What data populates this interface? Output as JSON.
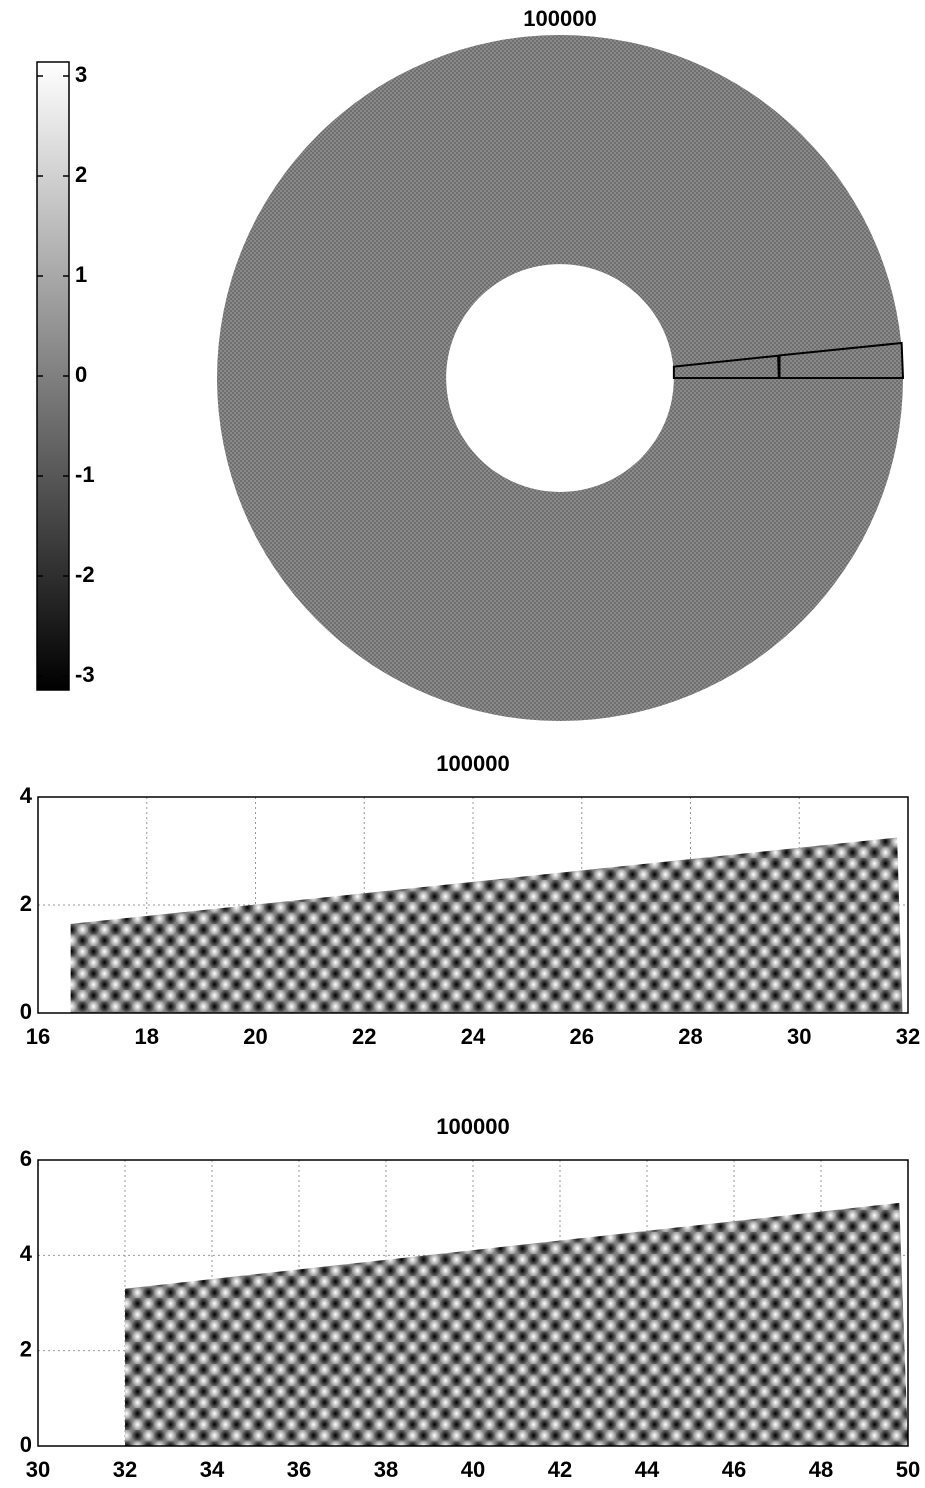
{
  "chart_data": [
    {
      "type": "annulus",
      "title": "100000",
      "radii": [
        16.6,
        50
      ],
      "colorbar": {
        "ylim": [
          -3.14,
          3.14
        ],
        "yticks": [
          -3,
          -2,
          -1,
          0,
          1,
          2,
          3
        ]
      }
    },
    {
      "type": "wedge",
      "title": "100000",
      "xlim": [
        16,
        32
      ],
      "ylim": [
        0,
        4
      ],
      "xticks": [
        16,
        18,
        20,
        22,
        24,
        26,
        28,
        30,
        32
      ],
      "yticks": [
        0,
        2,
        4
      ],
      "grid": true,
      "x": [
        16.6,
        16.6,
        31.8,
        31.9
      ],
      "y": [
        0,
        1.65,
        3.25,
        0
      ]
    },
    {
      "type": "wedge",
      "title": "100000",
      "xlim": [
        30,
        50
      ],
      "ylim": [
        0,
        6
      ],
      "xticks": [
        30,
        32,
        34,
        36,
        38,
        40,
        42,
        44,
        46,
        48,
        50
      ],
      "yticks": [
        0,
        2,
        4,
        6
      ],
      "grid": true,
      "x": [
        32,
        32,
        49.8,
        50
      ],
      "y": [
        0,
        3.3,
        5.1,
        0
      ]
    }
  ]
}
